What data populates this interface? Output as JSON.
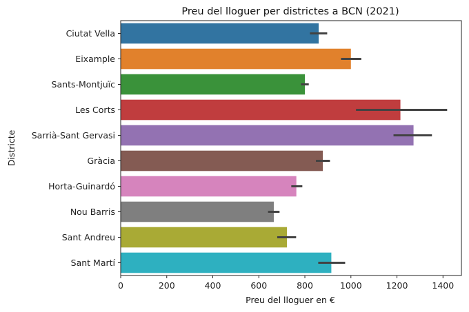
{
  "chart_data": {
    "type": "bar",
    "orientation": "horizontal",
    "title": "Preu del lloguer per districtes a BCN (2021)",
    "xlabel": "Preu del lloguer en €",
    "ylabel": "Districte",
    "xlim": [
      0,
      1480
    ],
    "xticks": [
      0,
      200,
      400,
      600,
      800,
      1000,
      1200,
      1400
    ],
    "grid": false,
    "categories": [
      "Ciutat Vella",
      "Eixample",
      "Sants-Montjuïc",
      "Les Corts",
      "Sarrià-Sant Gervasi",
      "Gràcia",
      "Horta-Guinardó",
      "Nou Barris",
      "Sant Andreu",
      "Sant Martí"
    ],
    "values": [
      860,
      1000,
      800,
      1215,
      1272,
      878,
      763,
      665,
      722,
      915
    ],
    "error_low": [
      822,
      957,
      783,
      1022,
      1185,
      848,
      741,
      640,
      680,
      858
    ],
    "error_high": [
      897,
      1045,
      817,
      1418,
      1352,
      909,
      789,
      690,
      762,
      975
    ],
    "colors": [
      "#3274a1",
      "#e1812c",
      "#3a923a",
      "#c03d3e",
      "#9372b2",
      "#845b53",
      "#d684bd",
      "#7f7f7f",
      "#a9aa35",
      "#2eb0c0"
    ],
    "error_color": "#424242"
  }
}
